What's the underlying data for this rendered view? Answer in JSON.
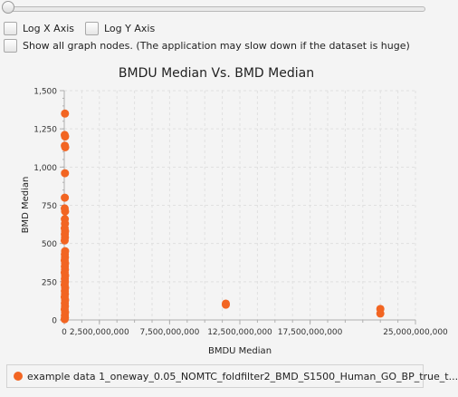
{
  "controls": {
    "log_x_label": "Log X Axis",
    "log_y_label": "Log Y Axis",
    "show_all_label": "Show all graph nodes.  (The application may slow down if the dataset is huge)"
  },
  "colors": {
    "series": "#f26522",
    "grid": "#e0e0e0",
    "axis": "#b0b0b0"
  },
  "chart_data": {
    "type": "scatter",
    "title": "BMDU Median Vs. BMD Median",
    "xlabel": "BMDU Median",
    "ylabel": "BMD Median",
    "xlim": [
      0,
      25000000000
    ],
    "ylim": [
      0,
      1500
    ],
    "x_ticks": [
      {
        "value": 0,
        "label": "0"
      },
      {
        "value": 2500000000,
        "label": "2,500,000,000"
      },
      {
        "value": 7500000000,
        "label": "7,500,000,000"
      },
      {
        "value": 12500000000,
        "label": "12,500,000,000"
      },
      {
        "value": 17500000000,
        "label": "17,500,000,000"
      },
      {
        "value": 25000000000,
        "label": "25,000,000,000"
      }
    ],
    "y_ticks": [
      {
        "value": 0,
        "label": "0"
      },
      {
        "value": 250,
        "label": "250"
      },
      {
        "value": 500,
        "label": "500"
      },
      {
        "value": 750,
        "label": "750"
      },
      {
        "value": 1000,
        "label": "1,000"
      },
      {
        "value": 1250,
        "label": "1,250"
      },
      {
        "value": 1500,
        "label": "1,500"
      }
    ],
    "grid": true,
    "legend_position": "bottom",
    "series": [
      {
        "name": "example data 1_oneway_0.05_NOMTC_foldfilter2_BMD_S1500_Human_GO_BP_true_t...",
        "points": [
          [
            50000000,
            1350
          ],
          [
            30000000,
            1210
          ],
          [
            60000000,
            1200
          ],
          [
            40000000,
            1140
          ],
          [
            70000000,
            1130
          ],
          [
            50000000,
            960
          ],
          [
            40000000,
            800
          ],
          [
            30000000,
            730
          ],
          [
            60000000,
            710
          ],
          [
            40000000,
            660
          ],
          [
            50000000,
            630
          ],
          [
            30000000,
            600
          ],
          [
            60000000,
            580
          ],
          [
            40000000,
            560
          ],
          [
            50000000,
            540
          ],
          [
            30000000,
            520
          ],
          [
            60000000,
            450
          ],
          [
            40000000,
            430
          ],
          [
            50000000,
            410
          ],
          [
            30000000,
            390
          ],
          [
            60000000,
            370
          ],
          [
            40000000,
            350
          ],
          [
            50000000,
            330
          ],
          [
            30000000,
            310
          ],
          [
            60000000,
            290
          ],
          [
            40000000,
            270
          ],
          [
            50000000,
            250
          ],
          [
            30000000,
            230
          ],
          [
            60000000,
            210
          ],
          [
            40000000,
            190
          ],
          [
            50000000,
            170
          ],
          [
            30000000,
            150
          ],
          [
            60000000,
            130
          ],
          [
            40000000,
            110
          ],
          [
            50000000,
            90
          ],
          [
            30000000,
            70
          ],
          [
            60000000,
            50
          ],
          [
            40000000,
            30
          ],
          [
            50000000,
            15
          ],
          [
            30000000,
            5
          ],
          [
            11500000000,
            107
          ],
          [
            11500000000,
            100
          ],
          [
            22500000000,
            72
          ],
          [
            22500000000,
            42
          ]
        ]
      }
    ]
  }
}
